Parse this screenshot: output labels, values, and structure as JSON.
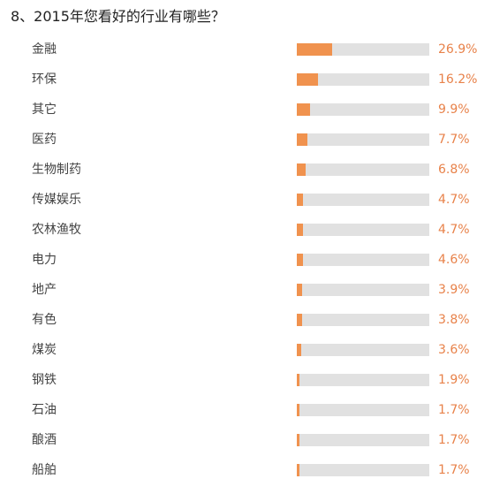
{
  "colors": {
    "bar_fill": "#f0924e",
    "bar_track": "#e1e1e1",
    "percent_text": "#e8824a"
  },
  "question": {
    "title": "8、2015年您看好的行业有哪些？"
  },
  "chart_data": {
    "type": "bar",
    "orientation": "horizontal",
    "title": "8、2015年您看好的行业有哪些？",
    "xlabel": "",
    "ylabel": "",
    "xlim": [
      0,
      100
    ],
    "grid": false,
    "categories": [
      "金融",
      "环保",
      "其它",
      "医药",
      "生物制药",
      "传媒娱乐",
      "农林渔牧",
      "电力",
      "地产",
      "有色",
      "煤炭",
      "钢铁",
      "石油",
      "酿酒",
      "船舶"
    ],
    "values": [
      26.9,
      16.2,
      9.9,
      7.7,
      6.8,
      4.7,
      4.7,
      4.6,
      3.9,
      3.8,
      3.6,
      1.9,
      1.7,
      1.7,
      1.7
    ],
    "labels": [
      "26.9%",
      "16.2%",
      "9.9%",
      "7.7%",
      "6.8%",
      "4.7%",
      "4.7%",
      "4.6%",
      "3.9%",
      "3.8%",
      "3.6%",
      "1.9%",
      "1.7%",
      "1.7%",
      "1.7%"
    ]
  }
}
